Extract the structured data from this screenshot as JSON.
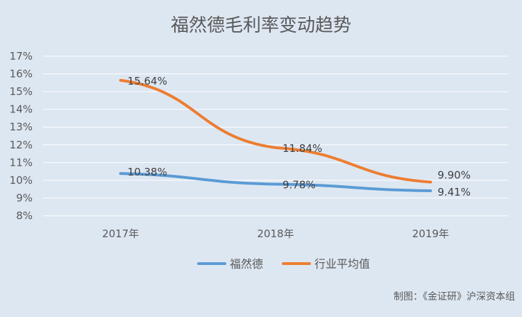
{
  "chart_data": {
    "type": "line",
    "title": "福然德毛利率变动趋势",
    "categories": [
      "2017年",
      "2018年",
      "2019年"
    ],
    "y_ticks": [
      "8%",
      "9%",
      "10%",
      "11%",
      "12%",
      "13%",
      "14%",
      "15%",
      "16%",
      "17%"
    ],
    "ylim": [
      8,
      17
    ],
    "grid": true,
    "legend_position": "bottom",
    "series": [
      {
        "name": "福然德",
        "values": [
          10.38,
          9.78,
          9.41
        ],
        "labels": [
          "10.38%",
          "9.78%",
          "9.41%"
        ],
        "color": "#5b9bd5"
      },
      {
        "name": "行业平均值",
        "values": [
          15.64,
          11.84,
          9.9
        ],
        "labels": [
          "15.64%",
          "11.84%",
          "9.90%"
        ],
        "color": "#ed7d31"
      }
    ],
    "source_note": "制图：《金证研》沪深资本组"
  }
}
